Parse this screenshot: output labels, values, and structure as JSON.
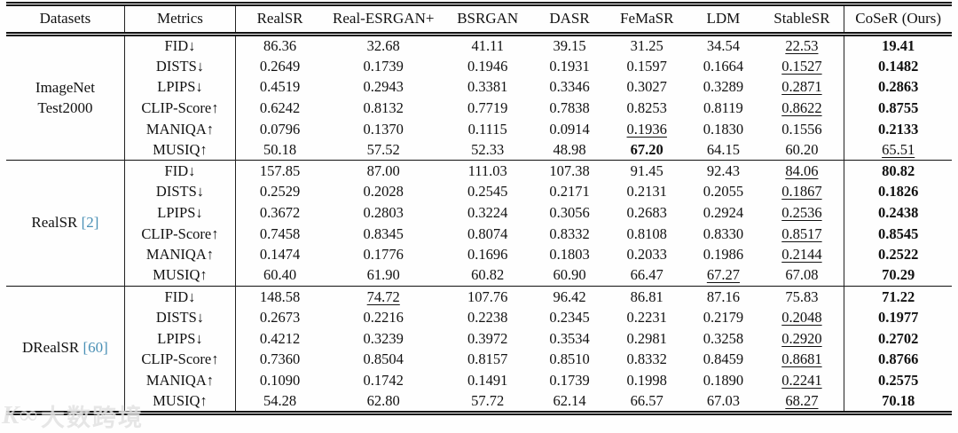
{
  "colors": {
    "citation": "#4a90b5",
    "text": "#111111",
    "rule": "#111111"
  },
  "watermark": {
    "logo": "K∞",
    "text": "大数跨境"
  },
  "table": {
    "columns": [
      "Datasets",
      "Metrics",
      "RealSR",
      "Real-ESRGAN+",
      "BSRGAN",
      "DASR",
      "FeMaSR",
      "LDM",
      "StableSR",
      "CoSeR (Ours)"
    ],
    "methods": [
      "realsr",
      "real-esrgan-plus",
      "bsrgan",
      "dasr",
      "femasr",
      "ldm",
      "stablesr",
      "coser"
    ],
    "groups": [
      {
        "dataset_lines": [
          "ImageNet",
          "Test2000"
        ],
        "citation": "",
        "rows": [
          {
            "metric": "FID↓",
            "values": [
              "86.36",
              "32.68",
              "41.11",
              "39.15",
              "31.25",
              "34.54",
              "22.53",
              "19.41"
            ],
            "styles": [
              "p",
              "p",
              "p",
              "p",
              "p",
              "p",
              "u",
              "b"
            ]
          },
          {
            "metric": "DISTS↓",
            "values": [
              "0.2649",
              "0.1739",
              "0.1946",
              "0.1931",
              "0.1597",
              "0.1664",
              "0.1527",
              "0.1482"
            ],
            "styles": [
              "p",
              "p",
              "p",
              "p",
              "p",
              "p",
              "u",
              "b"
            ]
          },
          {
            "metric": "LPIPS↓",
            "values": [
              "0.4519",
              "0.2943",
              "0.3381",
              "0.3346",
              "0.3027",
              "0.3289",
              "0.2871",
              "0.2863"
            ],
            "styles": [
              "p",
              "p",
              "p",
              "p",
              "p",
              "p",
              "u",
              "b"
            ]
          },
          {
            "metric": "CLIP-Score↑",
            "values": [
              "0.6242",
              "0.8132",
              "0.7719",
              "0.7838",
              "0.8253",
              "0.8119",
              "0.8622",
              "0.8755"
            ],
            "styles": [
              "p",
              "p",
              "p",
              "p",
              "p",
              "p",
              "u",
              "b"
            ]
          },
          {
            "metric": "MANIQA↑",
            "values": [
              "0.0796",
              "0.1370",
              "0.1115",
              "0.0914",
              "0.1936",
              "0.1830",
              "0.1556",
              "0.2133"
            ],
            "styles": [
              "p",
              "p",
              "p",
              "p",
              "u",
              "p",
              "p",
              "b"
            ]
          },
          {
            "metric": "MUSIQ↑",
            "values": [
              "50.18",
              "57.52",
              "52.33",
              "48.98",
              "67.20",
              "64.15",
              "60.20",
              "65.51"
            ],
            "styles": [
              "p",
              "p",
              "p",
              "p",
              "b",
              "p",
              "p",
              "u"
            ]
          }
        ]
      },
      {
        "dataset_lines": [
          "RealSR"
        ],
        "citation": "[2]",
        "rows": [
          {
            "metric": "FID↓",
            "values": [
              "157.85",
              "87.00",
              "111.03",
              "107.38",
              "91.45",
              "92.43",
              "84.06",
              "80.82"
            ],
            "styles": [
              "p",
              "p",
              "p",
              "p",
              "p",
              "p",
              "u",
              "b"
            ]
          },
          {
            "metric": "DISTS↓",
            "values": [
              "0.2529",
              "0.2028",
              "0.2545",
              "0.2171",
              "0.2131",
              "0.2055",
              "0.1867",
              "0.1826"
            ],
            "styles": [
              "p",
              "p",
              "p",
              "p",
              "p",
              "p",
              "u",
              "b"
            ]
          },
          {
            "metric": "LPIPS↓",
            "values": [
              "0.3672",
              "0.2803",
              "0.3224",
              "0.3056",
              "0.2683",
              "0.2924",
              "0.2536",
              "0.2438"
            ],
            "styles": [
              "p",
              "p",
              "p",
              "p",
              "p",
              "p",
              "u",
              "b"
            ]
          },
          {
            "metric": "CLIP-Score↑",
            "values": [
              "0.7458",
              "0.8345",
              "0.8074",
              "0.8332",
              "0.8108",
              "0.8330",
              "0.8517",
              "0.8545"
            ],
            "styles": [
              "p",
              "p",
              "p",
              "p",
              "p",
              "p",
              "u",
              "b"
            ]
          },
          {
            "metric": "MANIQA↑",
            "values": [
              "0.1474",
              "0.1776",
              "0.1696",
              "0.1803",
              "0.2033",
              "0.1986",
              "0.2144",
              "0.2522"
            ],
            "styles": [
              "p",
              "p",
              "p",
              "p",
              "p",
              "p",
              "u",
              "b"
            ]
          },
          {
            "metric": "MUSIQ↑",
            "values": [
              "60.40",
              "61.90",
              "60.82",
              "60.90",
              "66.47",
              "67.27",
              "67.08",
              "70.29"
            ],
            "styles": [
              "p",
              "p",
              "p",
              "p",
              "p",
              "u",
              "p",
              "b"
            ]
          }
        ]
      },
      {
        "dataset_lines": [
          "DRealSR"
        ],
        "citation": "[60]",
        "rows": [
          {
            "metric": "FID↓",
            "values": [
              "148.58",
              "74.72",
              "107.76",
              "96.42",
              "86.81",
              "87.16",
              "75.83",
              "71.22"
            ],
            "styles": [
              "p",
              "u",
              "p",
              "p",
              "p",
              "p",
              "p",
              "b"
            ]
          },
          {
            "metric": "DISTS↓",
            "values": [
              "0.2673",
              "0.2216",
              "0.2238",
              "0.2345",
              "0.2231",
              "0.2179",
              "0.2048",
              "0.1977"
            ],
            "styles": [
              "p",
              "p",
              "p",
              "p",
              "p",
              "p",
              "u",
              "b"
            ]
          },
          {
            "metric": "LPIPS↓",
            "values": [
              "0.4212",
              "0.3239",
              "0.3972",
              "0.3534",
              "0.2981",
              "0.3258",
              "0.2920",
              "0.2702"
            ],
            "styles": [
              "p",
              "p",
              "p",
              "p",
              "p",
              "p",
              "u",
              "b"
            ]
          },
          {
            "metric": "CLIP-Score↑",
            "values": [
              "0.7360",
              "0.8504",
              "0.8157",
              "0.8510",
              "0.8332",
              "0.8459",
              "0.8681",
              "0.8766"
            ],
            "styles": [
              "p",
              "p",
              "p",
              "p",
              "p",
              "p",
              "u",
              "b"
            ]
          },
          {
            "metric": "MANIQA↑",
            "values": [
              "0.1090",
              "0.1742",
              "0.1491",
              "0.1739",
              "0.1998",
              "0.1890",
              "0.2241",
              "0.2575"
            ],
            "styles": [
              "p",
              "p",
              "p",
              "p",
              "p",
              "p",
              "u",
              "b"
            ]
          },
          {
            "metric": "MUSIQ↑",
            "values": [
              "54.28",
              "62.80",
              "57.72",
              "62.14",
              "66.57",
              "67.03",
              "68.27",
              "70.18"
            ],
            "styles": [
              "p",
              "p",
              "p",
              "p",
              "p",
              "p",
              "u",
              "b"
            ]
          }
        ]
      }
    ]
  }
}
